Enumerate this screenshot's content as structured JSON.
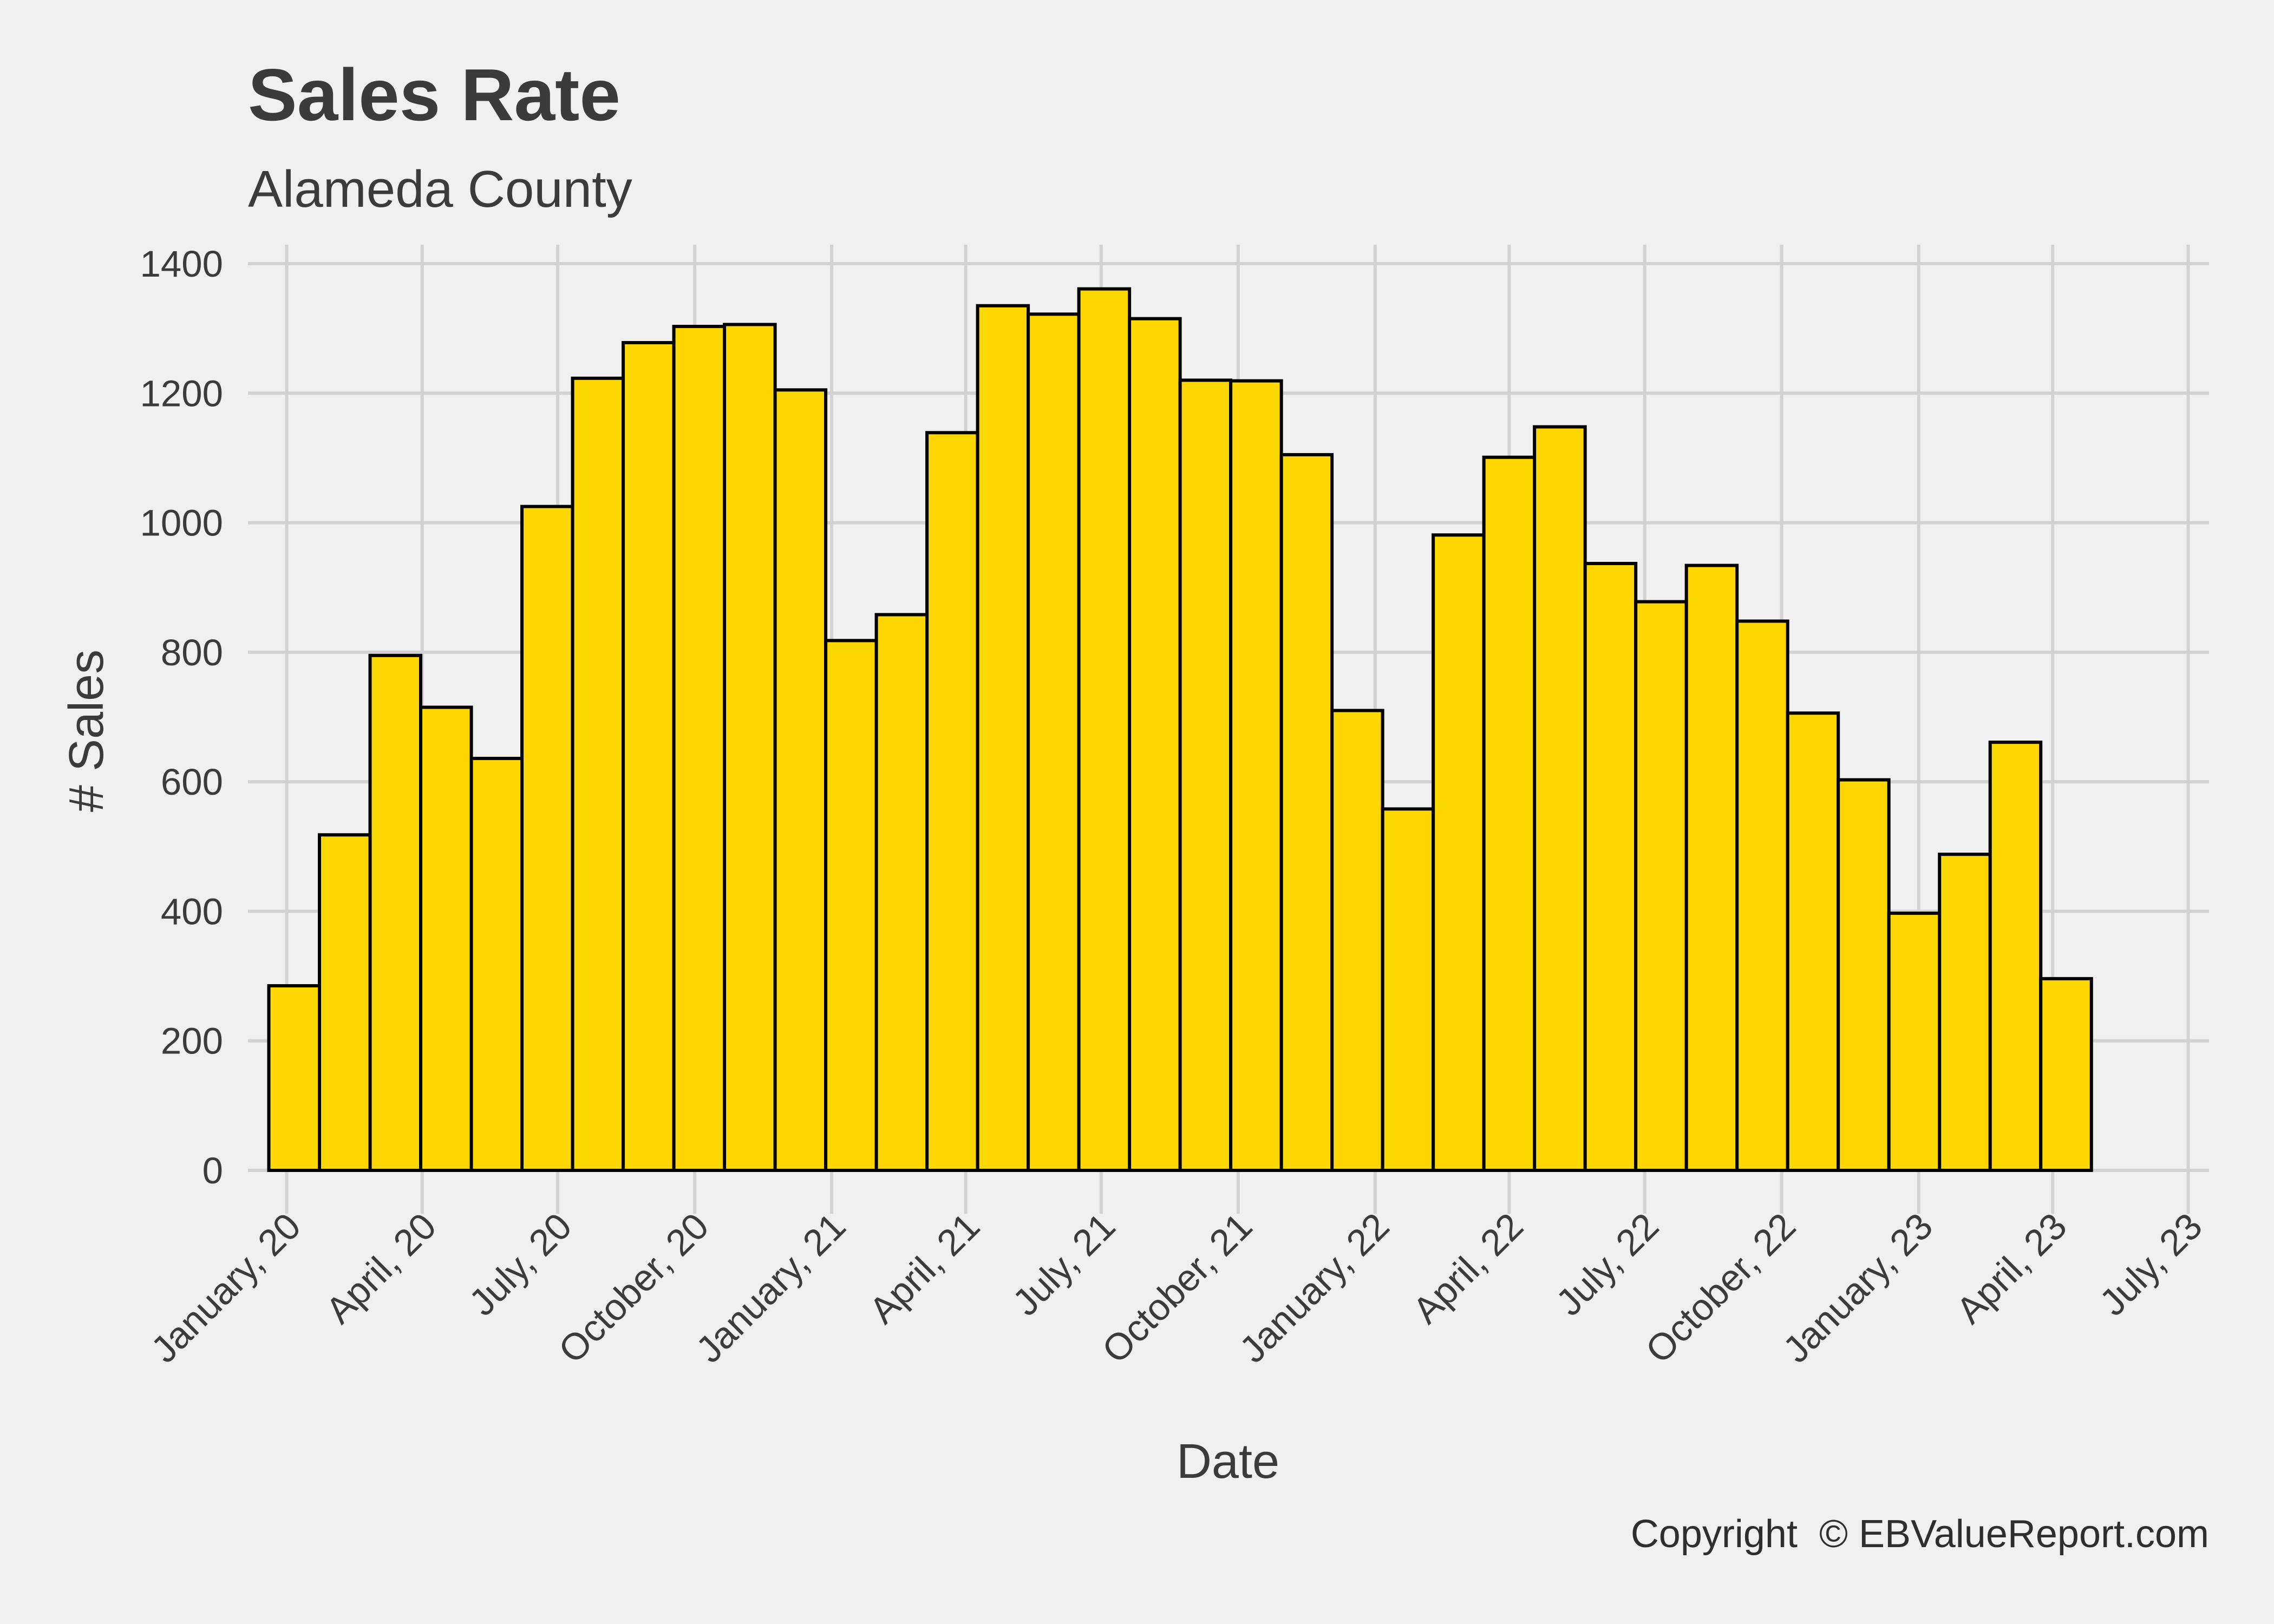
{
  "colors": {
    "background": "#f0f0f0",
    "bar_fill": "#ffd700",
    "bar_outline": "#000000",
    "grid": "#d2d2d2",
    "text": "#3b3b3b"
  },
  "chart_data": {
    "type": "bar",
    "title": "Sales Rate",
    "subtitle": "Alameda County",
    "xlabel": "Date",
    "ylabel": "# Sales",
    "caption": "Copyright  © EBValueReport.com",
    "ylim": [
      0,
      1400
    ],
    "xlim": [
      "2019-12-06",
      "2023-07-15"
    ],
    "y_ticks": [
      0,
      200,
      400,
      600,
      800,
      1000,
      1200,
      1400
    ],
    "x_ticks": [
      {
        "date": "2020-01-01",
        "label": "January, 20"
      },
      {
        "date": "2020-04-01",
        "label": "April, 20"
      },
      {
        "date": "2020-07-01",
        "label": "July, 20"
      },
      {
        "date": "2020-10-01",
        "label": "October, 20"
      },
      {
        "date": "2021-01-01",
        "label": "January, 21"
      },
      {
        "date": "2021-04-01",
        "label": "April, 21"
      },
      {
        "date": "2021-07-01",
        "label": "July, 21"
      },
      {
        "date": "2021-10-01",
        "label": "October, 21"
      },
      {
        "date": "2022-01-01",
        "label": "January, 22"
      },
      {
        "date": "2022-04-01",
        "label": "April, 22"
      },
      {
        "date": "2022-07-01",
        "label": "July, 22"
      },
      {
        "date": "2022-10-01",
        "label": "October, 22"
      },
      {
        "date": "2023-01-01",
        "label": "January, 23"
      },
      {
        "date": "2023-04-01",
        "label": "April, 23"
      },
      {
        "date": "2023-07-01",
        "label": "July, 23"
      }
    ],
    "grid": true,
    "bin_width_days": 34,
    "bars": [
      {
        "start": "2019-12-20",
        "value": 285
      },
      {
        "start": "2020-01-23",
        "value": 518
      },
      {
        "start": "2020-02-26",
        "value": 795
      },
      {
        "start": "2020-03-31",
        "value": 715
      },
      {
        "start": "2020-05-04",
        "value": 636
      },
      {
        "start": "2020-06-07",
        "value": 1025
      },
      {
        "start": "2020-07-11",
        "value": 1223
      },
      {
        "start": "2020-08-14",
        "value": 1278
      },
      {
        "start": "2020-09-17",
        "value": 1303
      },
      {
        "start": "2020-10-21",
        "value": 1306
      },
      {
        "start": "2020-11-24",
        "value": 1205
      },
      {
        "start": "2020-12-28",
        "value": 818
      },
      {
        "start": "2021-01-31",
        "value": 858
      },
      {
        "start": "2021-03-06",
        "value": 1139
      },
      {
        "start": "2021-04-09",
        "value": 1335
      },
      {
        "start": "2021-05-13",
        "value": 1322
      },
      {
        "start": "2021-06-16",
        "value": 1361
      },
      {
        "start": "2021-07-20",
        "value": 1315
      },
      {
        "start": "2021-08-23",
        "value": 1220
      },
      {
        "start": "2021-09-26",
        "value": 1219
      },
      {
        "start": "2021-10-30",
        "value": 1105
      },
      {
        "start": "2021-12-03",
        "value": 710
      },
      {
        "start": "2022-01-06",
        "value": 558
      },
      {
        "start": "2022-02-09",
        "value": 981
      },
      {
        "start": "2022-03-15",
        "value": 1101
      },
      {
        "start": "2022-04-18",
        "value": 1148
      },
      {
        "start": "2022-05-22",
        "value": 937
      },
      {
        "start": "2022-06-25",
        "value": 878
      },
      {
        "start": "2022-07-29",
        "value": 934
      },
      {
        "start": "2022-09-01",
        "value": 848
      },
      {
        "start": "2022-10-05",
        "value": 706
      },
      {
        "start": "2022-11-08",
        "value": 603
      },
      {
        "start": "2022-12-12",
        "value": 397
      },
      {
        "start": "2023-01-15",
        "value": 488
      },
      {
        "start": "2023-02-18",
        "value": 661
      },
      {
        "start": "2023-03-24",
        "value": 296
      }
    ]
  }
}
